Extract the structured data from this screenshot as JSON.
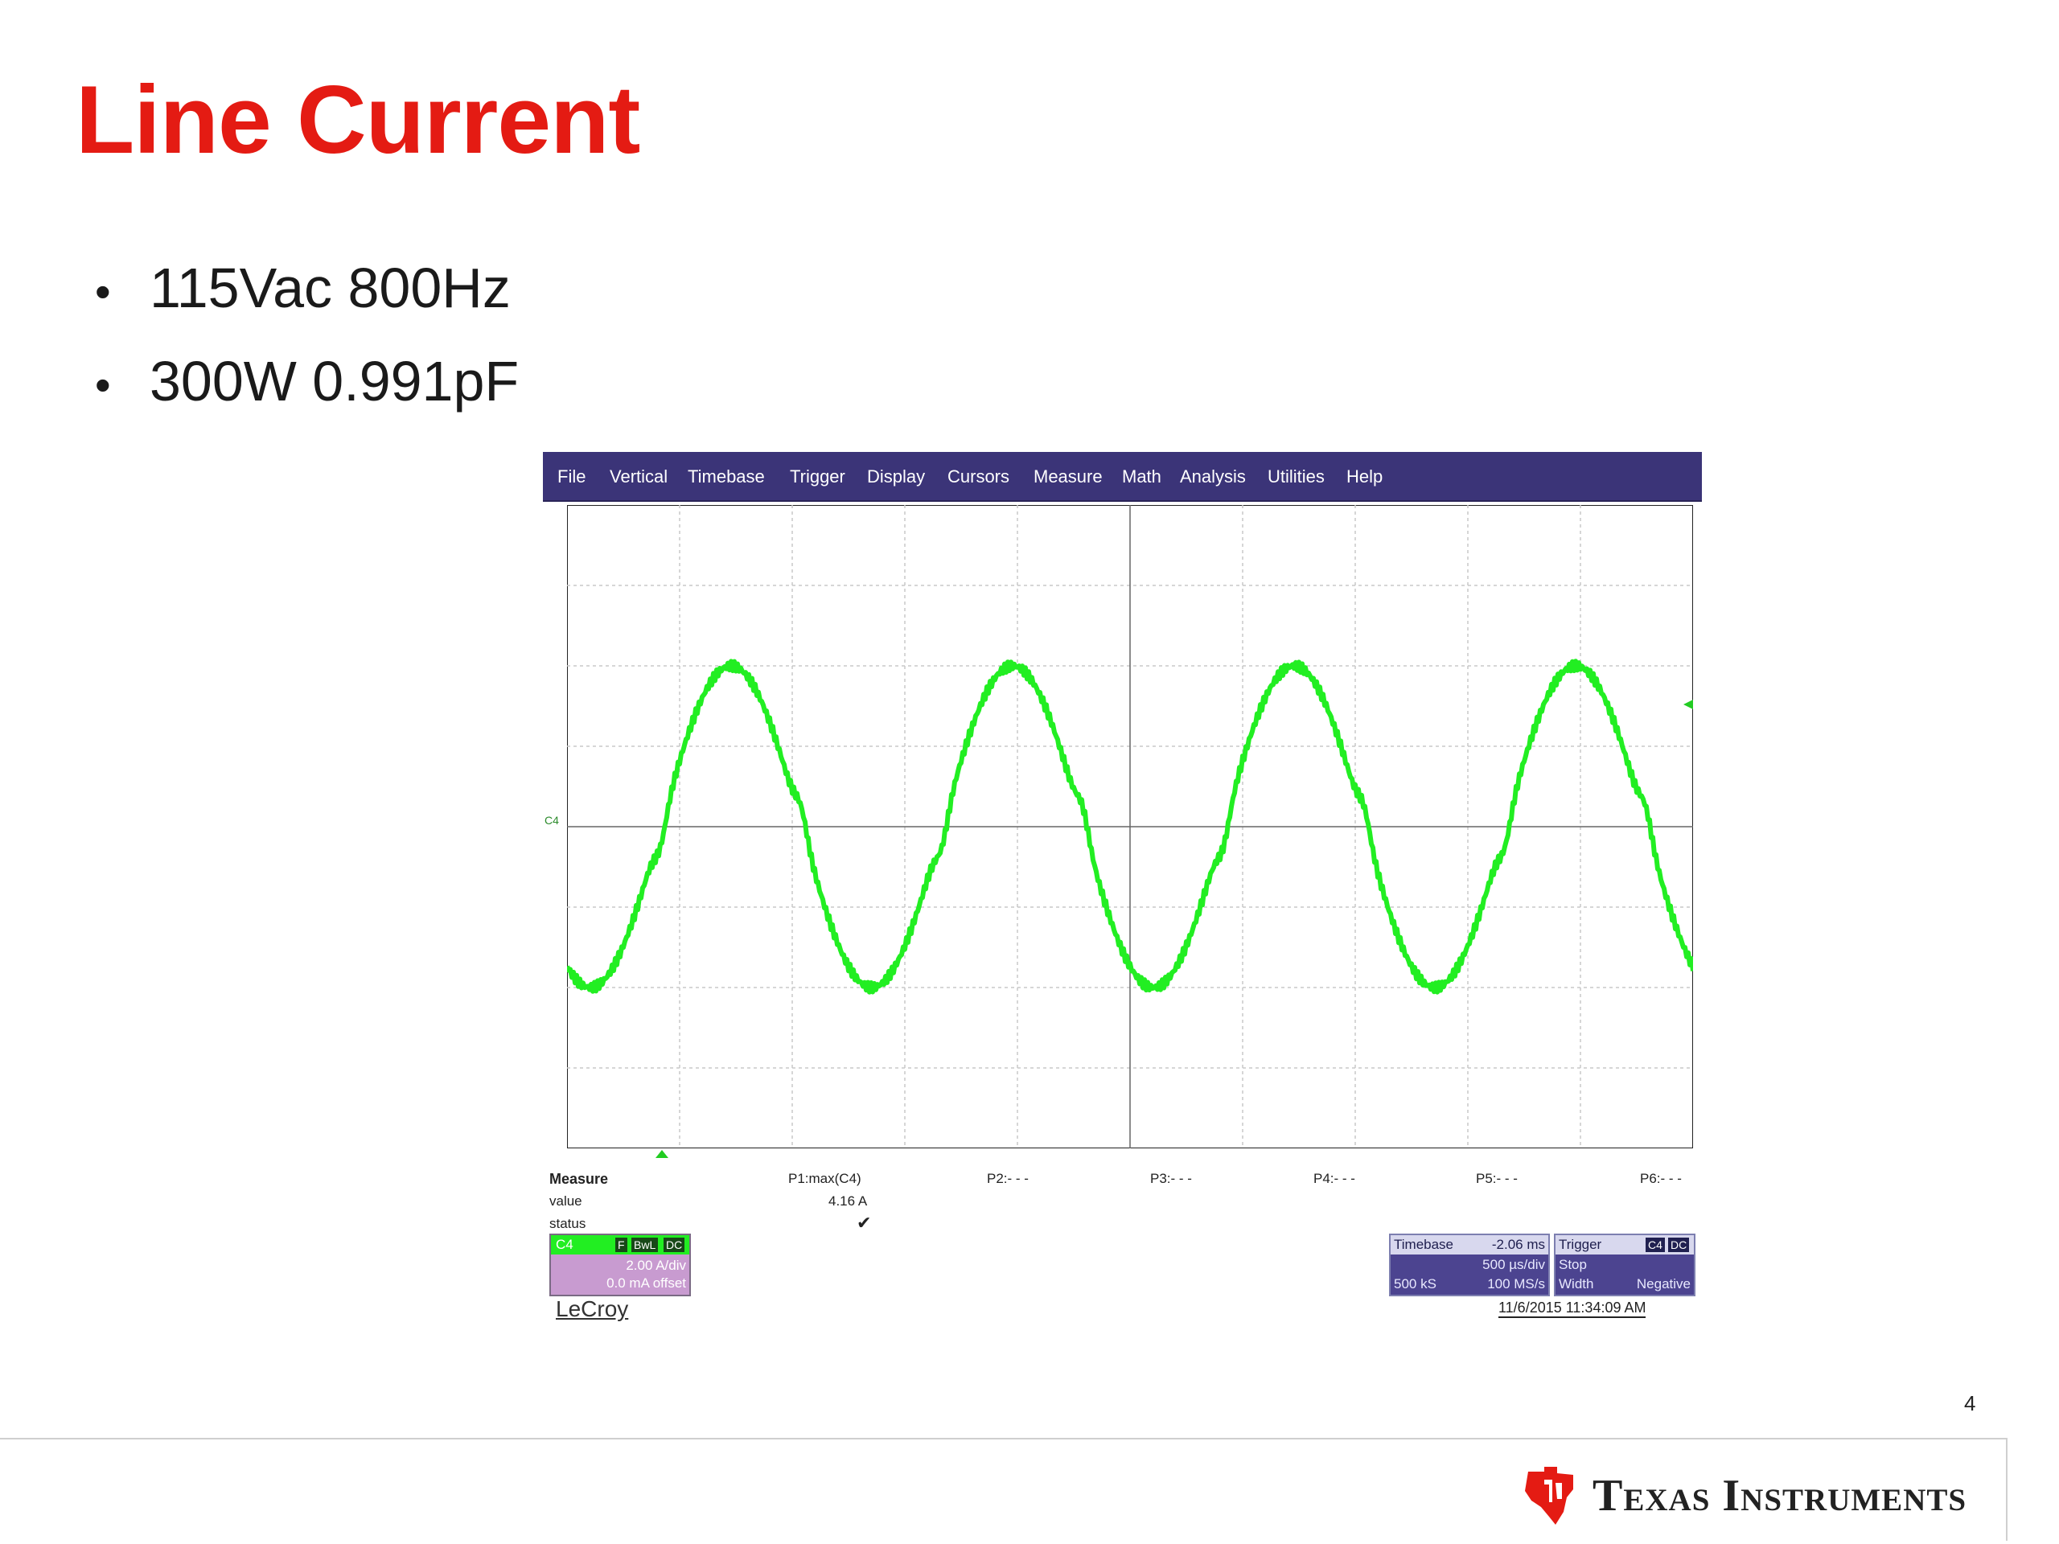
{
  "slide": {
    "title": "Line Current",
    "bullets": [
      "115Vac 800Hz",
      "300W 0.991pF"
    ],
    "page_number": "4",
    "brand": "Texas Instruments"
  },
  "scope": {
    "menu": [
      "File",
      "Vertical",
      "Timebase",
      "Trigger",
      "Display",
      "Cursors",
      "Measure",
      "Math",
      "Analysis",
      "Utilities",
      "Help"
    ],
    "channel_marker": "C4",
    "measure": {
      "header": "Measure",
      "row_labels": [
        "value",
        "status"
      ],
      "params": [
        "P1:max(C4)",
        "P2:- - -",
        "P3:- - -",
        "P4:- - -",
        "P5:- - -",
        "P6:- - -"
      ],
      "p1_value": "4.16 A",
      "p1_status": "✔"
    },
    "channel_box": {
      "name": "C4",
      "tags": [
        "F",
        "BwL",
        "DC"
      ],
      "scale": "2.00 A/div",
      "offset": "0.0 mA offset"
    },
    "timebase": {
      "label": "Timebase",
      "delay": "-2.06 ms",
      "scale": "500 µs/div",
      "samples": "500 kS",
      "rate": "100 MS/s"
    },
    "trigger": {
      "label": "Trigger",
      "tags": [
        "C4",
        "DC"
      ],
      "mode": "Stop",
      "type": "Width",
      "polarity": "Negative"
    },
    "logo": "LeCroy",
    "datetime": "11/6/2015 11:34:09 AM",
    "trace_color": "#22ee22",
    "menubar_color": "#3b3478"
  }
}
